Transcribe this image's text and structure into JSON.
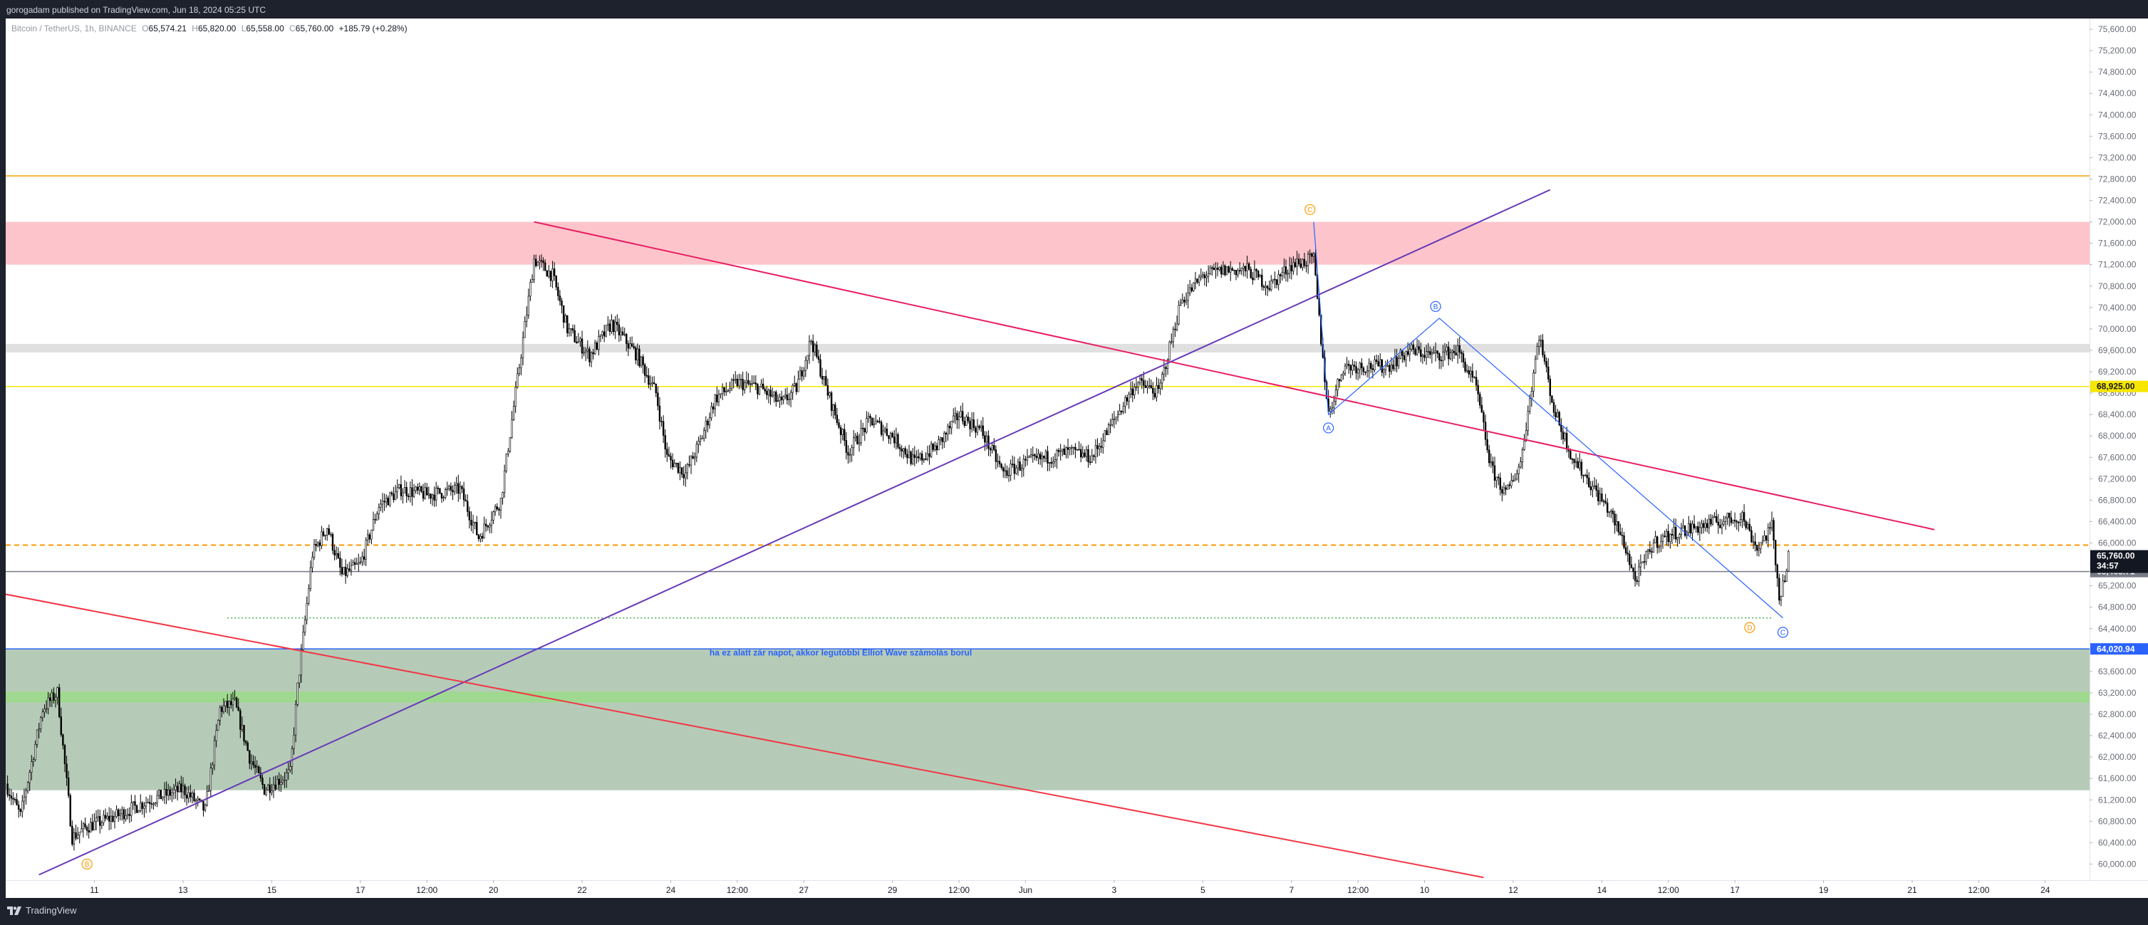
{
  "header": {
    "published_text": "gorogadam published on TradingView.com, Jun 18, 2024 05:25 UTC"
  },
  "footer": {
    "brand": "TradingView"
  },
  "chart_data": {
    "type": "candlestick",
    "symbol_line": {
      "symbol": "Bitcoin / TetherUS, 1h, BINANCE",
      "open_label": "O",
      "open": "65,574.21",
      "high_label": "H",
      "high": "65,820.00",
      "low_label": "L",
      "low": "65,558.00",
      "close_label": "C",
      "close": "65,760.00",
      "change": "+185.79 (+0.28%)"
    },
    "y_axis": {
      "ticks": [
        "75,600.00",
        "75,200.00",
        "74,800.00",
        "74,400.00",
        "74,000.00",
        "73,600.00",
        "73,200.00",
        "72,800.00",
        "72,400.00",
        "72,000.00",
        "71,600.00",
        "71,200.00",
        "70,800.00",
        "70,400.00",
        "70,000.00",
        "69,600.00",
        "69,200.00",
        "68,800.00",
        "68,400.00",
        "68,000.00",
        "67,600.00",
        "67,200.00",
        "66,800.00",
        "66,400.00",
        "66,000.00",
        "65,600.00",
        "65,200.00",
        "64,800.00",
        "64,400.00",
        "64,000.00",
        "63,600.00",
        "63,200.00",
        "62,800.00",
        "62,400.00",
        "62,000.00",
        "61,600.00",
        "61,200.00",
        "60,800.00",
        "60,400.00",
        "60,000.00"
      ],
      "range": [
        59700,
        75800
      ]
    },
    "x_axis": {
      "ticks": [
        {
          "label": "11",
          "date": "2024-05-11T00:00"
        },
        {
          "label": "13",
          "date": "2024-05-13T00:00"
        },
        {
          "label": "15",
          "date": "2024-05-15T00:00"
        },
        {
          "label": "17",
          "date": "2024-05-17T00:00"
        },
        {
          "label": "12:00",
          "date": "2024-05-18T12:00"
        },
        {
          "label": "20",
          "date": "2024-05-20T00:00"
        },
        {
          "label": "22",
          "date": "2024-05-22T00:00"
        },
        {
          "label": "24",
          "date": "2024-05-24T00:00"
        },
        {
          "label": "12:00",
          "date": "2024-05-25T12:00"
        },
        {
          "label": "27",
          "date": "2024-05-27T00:00"
        },
        {
          "label": "29",
          "date": "2024-05-29T00:00"
        },
        {
          "label": "12:00",
          "date": "2024-05-30T12:00"
        },
        {
          "label": "Jun",
          "date": "2024-06-01T00:00"
        },
        {
          "label": "3",
          "date": "2024-06-03T00:00"
        },
        {
          "label": "5",
          "date": "2024-06-05T00:00"
        },
        {
          "label": "7",
          "date": "2024-06-07T00:00"
        },
        {
          "label": "12:00",
          "date": "2024-06-08T12:00"
        },
        {
          "label": "10",
          "date": "2024-06-10T00:00"
        },
        {
          "label": "12",
          "date": "2024-06-12T00:00"
        },
        {
          "label": "14",
          "date": "2024-06-14T00:00"
        },
        {
          "label": "12:00",
          "date": "2024-06-15T12:00"
        },
        {
          "label": "17",
          "date": "2024-06-17T00:00"
        },
        {
          "label": "19",
          "date": "2024-06-19T00:00"
        },
        {
          "label": "21",
          "date": "2024-06-21T00:00"
        },
        {
          "label": "12:00",
          "date": "2024-06-22T12:00"
        },
        {
          "label": "24",
          "date": "2024-06-24T00:00"
        }
      ],
      "range": [
        "2024-05-09T00:00",
        "2024-06-25T00:00"
      ]
    },
    "price_path": [
      [
        "2024-05-09T00:00",
        61500
      ],
      [
        "2024-05-09T08:00",
        60900
      ],
      [
        "2024-05-09T20:00",
        62900
      ],
      [
        "2024-05-10T04:00",
        63200
      ],
      [
        "2024-05-10T12:00",
        60500
      ],
      [
        "2024-05-10T20:00",
        60700
      ],
      [
        "2024-05-11T12:00",
        60900
      ],
      [
        "2024-05-12T06:00",
        61200
      ],
      [
        "2024-05-13T00:00",
        61400
      ],
      [
        "2024-05-13T12:00",
        61000
      ],
      [
        "2024-05-13T20:00",
        62900
      ],
      [
        "2024-05-14T04:00",
        63000
      ],
      [
        "2024-05-14T12:00",
        62000
      ],
      [
        "2024-05-14T20:00",
        61400
      ],
      [
        "2024-05-15T10:00",
        61700
      ],
      [
        "2024-05-15T14:00",
        63300
      ],
      [
        "2024-05-15T22:00",
        65800
      ],
      [
        "2024-05-16T06:00",
        66300
      ],
      [
        "2024-05-16T14:00",
        65400
      ],
      [
        "2024-05-17T00:00",
        65600
      ],
      [
        "2024-05-17T10:00",
        66700
      ],
      [
        "2024-05-17T22:00",
        67000
      ],
      [
        "2024-05-18T12:00",
        66900
      ],
      [
        "2024-05-19T06:00",
        67000
      ],
      [
        "2024-05-19T16:00",
        66100
      ],
      [
        "2024-05-20T04:00",
        66800
      ],
      [
        "2024-05-20T12:00",
        68800
      ],
      [
        "2024-05-20T22:00",
        71300
      ],
      [
        "2024-05-21T08:00",
        71000
      ],
      [
        "2024-05-21T16:00",
        70000
      ],
      [
        "2024-05-22T04:00",
        69500
      ],
      [
        "2024-05-22T16:00",
        70100
      ],
      [
        "2024-05-23T06:00",
        69500
      ],
      [
        "2024-05-23T16:00",
        68800
      ],
      [
        "2024-05-23T22:00",
        67600
      ],
      [
        "2024-05-24T08:00",
        67300
      ],
      [
        "2024-05-24T16:00",
        67900
      ],
      [
        "2024-05-25T00:00",
        68700
      ],
      [
        "2024-05-25T12:00",
        69000
      ],
      [
        "2024-05-26T00:00",
        68900
      ],
      [
        "2024-05-26T12:00",
        68600
      ],
      [
        "2024-05-26T20:00",
        68900
      ],
      [
        "2024-05-27T04:00",
        69800
      ],
      [
        "2024-05-27T12:00",
        68900
      ],
      [
        "2024-05-28T00:00",
        67700
      ],
      [
        "2024-05-28T12:00",
        68300
      ],
      [
        "2024-05-29T00:00",
        68000
      ],
      [
        "2024-05-29T12:00",
        67500
      ],
      [
        "2024-05-30T00:00",
        67800
      ],
      [
        "2024-05-30T12:00",
        68400
      ],
      [
        "2024-05-31T00:00",
        68100
      ],
      [
        "2024-05-31T12:00",
        67300
      ],
      [
        "2024-06-01T00:00",
        67500
      ],
      [
        "2024-06-01T12:00",
        67600
      ],
      [
        "2024-06-02T00:00",
        67700
      ],
      [
        "2024-06-02T12:00",
        67600
      ],
      [
        "2024-06-03T00:00",
        68300
      ],
      [
        "2024-06-03T12:00",
        69000
      ],
      [
        "2024-06-04T00:00",
        68800
      ],
      [
        "2024-06-04T12:00",
        70500
      ],
      [
        "2024-06-05T00:00",
        71000
      ],
      [
        "2024-06-05T12:00",
        71100
      ],
      [
        "2024-06-06T00:00",
        71100
      ],
      [
        "2024-06-06T12:00",
        70800
      ],
      [
        "2024-06-07T00:00",
        71200
      ],
      [
        "2024-06-07T12:00",
        71300
      ],
      [
        "2024-06-07T16:00",
        69800
      ],
      [
        "2024-06-07T20:00",
        68400
      ],
      [
        "2024-06-08T04:00",
        69300
      ],
      [
        "2024-06-08T16:00",
        69300
      ],
      [
        "2024-06-09T04:00",
        69300
      ],
      [
        "2024-06-09T16:00",
        69600
      ],
      [
        "2024-06-10T06:00",
        69500
      ],
      [
        "2024-06-10T18:00",
        69600
      ],
      [
        "2024-06-11T04:00",
        68900
      ],
      [
        "2024-06-11T12:00",
        67400
      ],
      [
        "2024-06-11T20:00",
        66900
      ],
      [
        "2024-06-12T04:00",
        67500
      ],
      [
        "2024-06-12T14:00",
        69900
      ],
      [
        "2024-06-12T22:00",
        68500
      ],
      [
        "2024-06-13T08:00",
        67600
      ],
      [
        "2024-06-13T20:00",
        67000
      ],
      [
        "2024-06-14T04:00",
        66600
      ],
      [
        "2024-06-14T12:00",
        66000
      ],
      [
        "2024-06-14T18:00",
        65300
      ],
      [
        "2024-06-15T04:00",
        66000
      ],
      [
        "2024-06-15T16:00",
        66200
      ],
      [
        "2024-06-16T04:00",
        66300
      ],
      [
        "2024-06-16T16:00",
        66400
      ],
      [
        "2024-06-17T04:00",
        66500
      ],
      [
        "2024-06-17T12:00",
        65900
      ],
      [
        "2024-06-17T20:00",
        66300
      ],
      [
        "2024-06-18T00:00",
        65000
      ],
      [
        "2024-06-18T04:00",
        65500
      ],
      [
        "2024-06-18T05:00",
        65760
      ]
    ],
    "current_price": {
      "value": 65760.0,
      "label": "65,760.00",
      "countdown": "34:57"
    },
    "reference_price": {
      "value": 65465.71,
      "label": "65,465.71"
    },
    "annotations": {
      "zones": [
        {
          "name": "supply-zone",
          "from": 71200,
          "to": 72000,
          "color": "#fdc5cb"
        },
        {
          "name": "gray-zone",
          "from": 69560,
          "to": 69720,
          "color": "#e0e0e0"
        },
        {
          "name": "demand-zone",
          "from": 61380,
          "to": 64020.94,
          "color": "#b5cbb7"
        },
        {
          "name": "green-band",
          "from": 63020,
          "to": 63220,
          "color": "#9fd98f"
        }
      ],
      "horizontal_lines": [
        {
          "name": "orange-resistance-line",
          "value": 72860,
          "color": "#f59f00",
          "style": "solid"
        },
        {
          "name": "yellow-level-line",
          "value": 68925,
          "label": "68,925.00",
          "color": "#f7e600",
          "style": "solid"
        },
        {
          "name": "blue-level-line",
          "value": 64020.94,
          "label": "64,020.94",
          "color": "#2962ff",
          "style": "solid"
        },
        {
          "name": "orange-dashed-line",
          "value": 65960,
          "color": "#ff9800",
          "style": "dashed"
        },
        {
          "name": "gray-level-line",
          "value": 65465.71,
          "color": "#787b86",
          "style": "solid"
        }
      ],
      "green_dotted_line": {
        "value": 64600,
        "from": "2024-05-14T00:00",
        "to": "2024-06-17T20:00",
        "color": "#4caf50"
      },
      "trend_lines": [
        {
          "name": "pink-down-trendline",
          "from": [
            "2024-05-20T22:00",
            72000
          ],
          "to": [
            "2024-06-21T12:00",
            66250
          ],
          "color": "#e91e63"
        },
        {
          "name": "purple-up-trendline",
          "from": [
            "2024-05-09T18:00",
            59800
          ],
          "to": [
            "2024-06-12T20:00",
            72600
          ],
          "color": "#673ab7"
        },
        {
          "name": "red-down-trendline",
          "from": [
            "2024-05-08T00:00",
            65200
          ],
          "to": [
            "2024-06-11T08:00",
            59750
          ],
          "color": "#f23645"
        }
      ],
      "wave_path": [
        [
          "2024-06-07T12:00",
          72000
        ],
        [
          "2024-06-07T20:00",
          68400
        ],
        [
          "2024-06-10T08:00",
          70200
        ],
        [
          "2024-06-18T02:00",
          64600
        ]
      ],
      "wave_labels": [
        {
          "text": "C",
          "at": [
            "2024-06-07T10:00",
            72230
          ],
          "color": "#ff9800"
        },
        {
          "text": "A",
          "at": [
            "2024-06-07T20:00",
            68150
          ],
          "color": "#2962ff"
        },
        {
          "text": "B",
          "at": [
            "2024-06-10T06:00",
            70420
          ],
          "color": "#2962ff"
        },
        {
          "text": "C",
          "at": [
            "2024-06-18T02:00",
            64330
          ],
          "color": "#2962ff"
        },
        {
          "text": "D",
          "at": [
            "2024-06-17T08:00",
            64420
          ],
          "color": "#ff9800"
        },
        {
          "text": "B",
          "at": [
            "2024-05-10T20:00",
            60000
          ],
          "color": "#ff9800"
        }
      ],
      "note": {
        "text": "ha ez alatt zár napot, akkor legutóbbi Elliot Wave számolás borul",
        "at": [
          "2024-05-27T20:00",
          63900
        ]
      }
    }
  }
}
